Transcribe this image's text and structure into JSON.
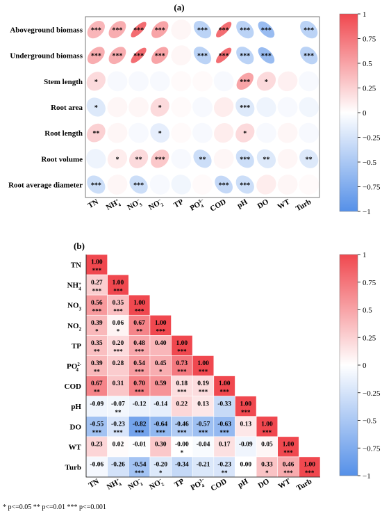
{
  "panel_a": {
    "label": "(a)"
  },
  "panel_b": {
    "label": "(b)"
  },
  "footnote": "* p<=0.05  ** p<=0.01  *** p<=0.001",
  "colorbar": {
    "ticks": [
      "1",
      "0.75",
      "0.5",
      "0.25",
      "0",
      "−0.25",
      "−0.5",
      "−0.75",
      "−1"
    ]
  },
  "colors": {
    "positive": "#f0484f",
    "zero": "#ffffff",
    "negative": "#5590e8"
  },
  "chart_data": [
    {
      "type": "heatmap",
      "title": "(a)",
      "rows": [
        "Aboveground biomass",
        "Underground biomass",
        "Stem length",
        "Root area",
        "Root length",
        "Root volume",
        "Root average diameter"
      ],
      "columns": [
        "TN",
        "NH4+",
        "NO3−",
        "NO2−",
        "TP",
        "PO43−",
        "COD",
        "pH",
        "DO",
        "WT",
        "Turb"
      ],
      "values": [
        [
          0.4,
          0.45,
          0.8,
          0.5,
          0.05,
          -0.4,
          0.8,
          -0.4,
          -0.6,
          0.0,
          -0.4
        ],
        [
          0.45,
          0.45,
          0.8,
          0.5,
          0.05,
          -0.4,
          0.8,
          -0.4,
          -0.6,
          0.0,
          -0.4
        ],
        [
          0.2,
          -0.05,
          -0.05,
          -0.05,
          0.03,
          0.03,
          -0.05,
          0.5,
          0.2,
          0.08,
          -0.05
        ],
        [
          -0.2,
          0.05,
          0.05,
          0.2,
          0.03,
          -0.05,
          0.1,
          -0.2,
          -0.1,
          -0.05,
          -0.08
        ],
        [
          0.25,
          0.05,
          -0.05,
          -0.15,
          0.03,
          -0.05,
          0.1,
          0.2,
          -0.05,
          0.05,
          -0.05
        ],
        [
          -0.1,
          0.1,
          0.2,
          0.3,
          -0.05,
          -0.3,
          0.05,
          -0.3,
          -0.2,
          0.05,
          -0.2
        ],
        [
          -0.3,
          0.05,
          -0.3,
          -0.05,
          -0.08,
          0.03,
          -0.35,
          -0.3,
          0.1,
          0.05,
          0.03
        ]
      ],
      "significance": [
        [
          "***",
          "***",
          "***",
          "***",
          "",
          "***",
          "***",
          "***",
          "***",
          "",
          "***"
        ],
        [
          "***",
          "***",
          "***",
          "***",
          "",
          "***",
          "***",
          "***",
          "***",
          "",
          "***"
        ],
        [
          "*",
          "",
          "",
          "",
          "",
          "",
          "",
          "***",
          "*",
          "",
          ""
        ],
        [
          "*",
          "",
          "",
          "*",
          "",
          "",
          "",
          "***",
          "",
          "",
          ""
        ],
        [
          "**",
          "",
          "",
          "*",
          "",
          "",
          "",
          "*",
          "",
          "",
          ""
        ],
        [
          "",
          "*",
          "**",
          "***",
          "",
          "**",
          "",
          "***",
          "**",
          "",
          "**"
        ],
        [
          "***",
          "",
          "***",
          "",
          "",
          "",
          "***",
          "***",
          "",
          "",
          ""
        ]
      ],
      "color_range": [
        -1,
        1
      ]
    },
    {
      "type": "heatmap",
      "title": "(b)",
      "rows": [
        "TN",
        "NH4+",
        "NO3",
        "NO2",
        "TP",
        "PO42-",
        "COD",
        "pH",
        "DO",
        "WT",
        "Turb"
      ],
      "columns": [
        "TN",
        "NH4+",
        "NO3−",
        "NO2−",
        "TP",
        "PO43−",
        "COD",
        "pH",
        "DO",
        "WT",
        "Turb"
      ],
      "values": [
        [
          1.0
        ],
        [
          0.27,
          1.0
        ],
        [
          0.56,
          0.35,
          1.0
        ],
        [
          0.39,
          0.06,
          0.67,
          1.0
        ],
        [
          0.35,
          0.2,
          0.48,
          0.4,
          1.0
        ],
        [
          0.39,
          0.28,
          0.54,
          0.45,
          0.73,
          1.0
        ],
        [
          0.67,
          0.31,
          0.7,
          0.59,
          0.18,
          0.19,
          1.0
        ],
        [
          -0.09,
          -0.07,
          -0.12,
          -0.14,
          0.22,
          0.13,
          -0.33,
          1.0
        ],
        [
          -0.55,
          -0.23,
          -0.82,
          -0.64,
          -0.46,
          -0.57,
          -0.63,
          0.13,
          1.0
        ],
        [
          0.23,
          0.02,
          -0.01,
          0.3,
          -0.0,
          -0.04,
          0.17,
          -0.09,
          0.05,
          1.0
        ],
        [
          -0.06,
          -0.26,
          -0.54,
          -0.2,
          -0.34,
          -0.21,
          -0.23,
          0.0,
          0.33,
          0.46,
          1.0
        ]
      ],
      "labels": [
        [
          "1.00"
        ],
        [
          "0.27",
          "1.00"
        ],
        [
          "0.56",
          "0.35",
          "1.00"
        ],
        [
          "0.39",
          "0.06",
          "0.67",
          "1.00"
        ],
        [
          "0.35",
          "0.20",
          "0.48",
          "0.40",
          "1.00"
        ],
        [
          "0.39",
          "0.28",
          "0.54",
          "0.45",
          "0.73",
          "1.00"
        ],
        [
          "0.67",
          "0.31",
          "0.70",
          "0.59",
          "0.18",
          "0.19",
          "1.00"
        ],
        [
          "-0.09",
          "-0.07",
          "-0.12",
          "-0.14",
          "0.22",
          "0.13",
          "-0.33",
          "1.00"
        ],
        [
          "-0.55",
          "-0.23",
          "-0.82",
          "-0.64",
          "-0.46",
          "-0.57",
          "-0.63",
          "0.13",
          "1.00"
        ],
        [
          "0.23",
          "0.02",
          "-0.01",
          "0.30",
          "-0.00",
          "-0.04",
          "0.17",
          "-0.09",
          "0.05",
          "1.00"
        ],
        [
          "-0.06",
          "-0.26",
          "-0.54",
          "-0.20",
          "-0.34",
          "-0.21",
          "-0.23",
          "0.00",
          "0.33",
          "0.46",
          "1.00"
        ]
      ],
      "significance": [
        [
          "***"
        ],
        [
          "***",
          "***"
        ],
        [
          "***",
          "***",
          "***"
        ],
        [
          "*",
          "*",
          "**",
          "***"
        ],
        [
          "**",
          "***",
          "***",
          "",
          "***"
        ],
        [
          "**",
          "",
          "***",
          "*",
          "***",
          "***"
        ],
        [
          "**",
          "",
          "***",
          "",
          "***",
          "***",
          "***"
        ],
        [
          "",
          "**",
          "",
          "",
          "",
          "",
          "",
          "***"
        ],
        [
          "***",
          "***",
          "***",
          "***",
          "***",
          "***",
          "***",
          "",
          "***"
        ],
        [
          "",
          "",
          "",
          "",
          "*",
          "",
          "",
          "",
          "",
          "***"
        ],
        [
          "",
          "",
          "***",
          "*",
          "",
          "",
          "**",
          "",
          "*",
          "***",
          "***"
        ]
      ],
      "color_range": [
        -1,
        1
      ]
    }
  ]
}
